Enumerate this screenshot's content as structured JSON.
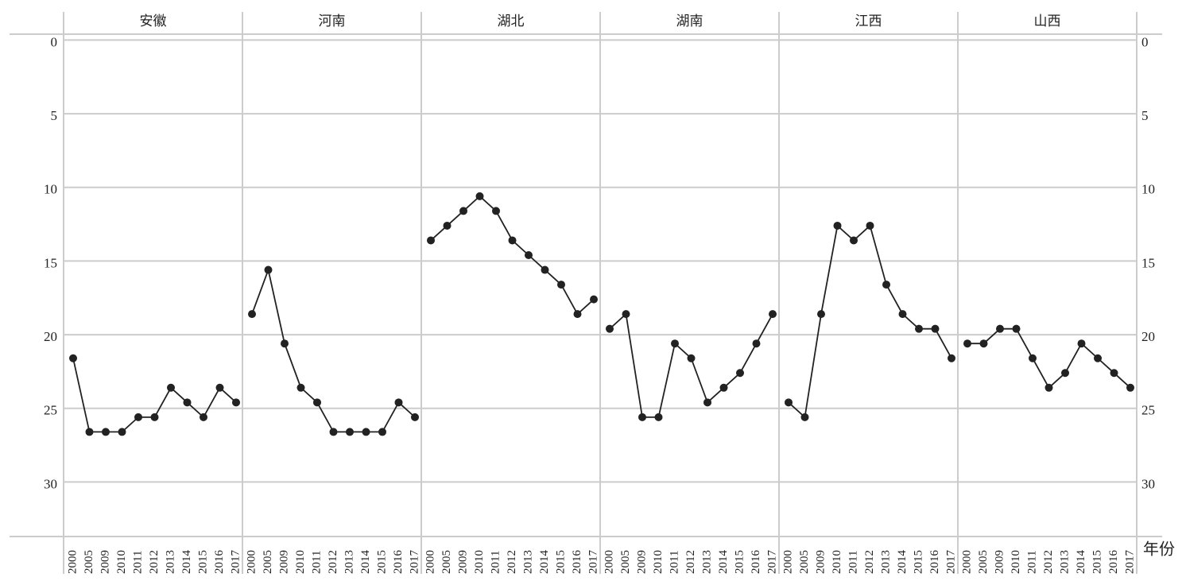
{
  "chart_data": {
    "type": "line",
    "y_inverted": true,
    "grid": true,
    "x_label": "年份",
    "categories": [
      "2000",
      "2005",
      "2009",
      "2010",
      "2011",
      "2012",
      "2013",
      "2014",
      "2015",
      "2016",
      "2017"
    ],
    "ylim": [
      -0.4,
      33.7
    ],
    "yticks": [
      0,
      5,
      10,
      15,
      20,
      25,
      30
    ],
    "series": [
      {
        "name": "安徽",
        "color": "#222222",
        "values": [
          21.6,
          26.6,
          26.6,
          26.6,
          25.6,
          25.6,
          23.6,
          24.6,
          25.6,
          23.6,
          24.6
        ]
      },
      {
        "name": "河南",
        "color": "#222222",
        "values": [
          18.6,
          15.6,
          20.6,
          23.6,
          24.6,
          26.6,
          26.6,
          26.6,
          26.6,
          24.6,
          25.6
        ]
      },
      {
        "name": "湖北",
        "color": "#222222",
        "values": [
          13.6,
          12.6,
          11.6,
          10.6,
          11.6,
          13.6,
          14.6,
          15.6,
          16.6,
          18.6,
          17.6
        ]
      },
      {
        "name": "湖南",
        "color": "#222222",
        "values": [
          19.6,
          18.6,
          25.6,
          25.6,
          20.6,
          21.6,
          24.6,
          23.6,
          22.6,
          20.6,
          18.6
        ]
      },
      {
        "name": "江西",
        "color": "#222222",
        "values": [
          24.6,
          25.6,
          18.6,
          12.6,
          13.6,
          12.6,
          16.6,
          18.6,
          19.6,
          19.6,
          21.6
        ]
      },
      {
        "name": "山西",
        "color": "#222222",
        "values": [
          20.6,
          20.6,
          19.6,
          19.6,
          21.6,
          23.6,
          22.6,
          20.6,
          21.6,
          22.6,
          23.6
        ]
      }
    ]
  }
}
